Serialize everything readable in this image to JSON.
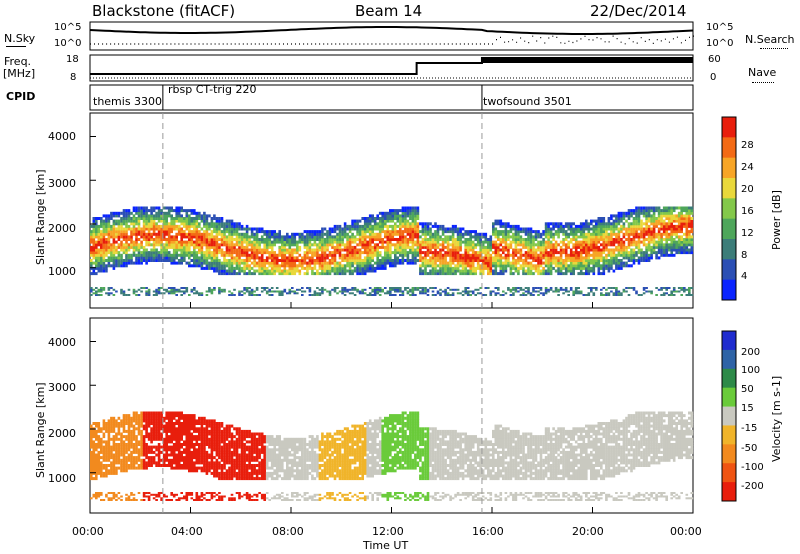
{
  "header": {
    "station": "Blackstone (fitACF)",
    "beam": "Beam 14",
    "date": "22/Dec/2014"
  },
  "top_panels": {
    "left_label_1": "N.Sky",
    "left_label_2a": "Freq.",
    "left_label_2b": "[MHz]",
    "left_label_3": "CPID",
    "right_label_1": "N.Search",
    "right_label_2": "Nave",
    "nsky_ticks": [
      "10^5",
      "10^0"
    ],
    "nsearch_ticks": [
      "10^5",
      "10^0"
    ],
    "freq_ticks": [
      "18",
      "8"
    ],
    "nave_ticks": [
      "60",
      "0"
    ],
    "cpid_labels": [
      "themis 3300",
      "rbsp CT-trig 220",
      "twofsound 3501"
    ]
  },
  "chart_data": [
    {
      "type": "heatmap",
      "ylabel": "Slant Range [km]",
      "y_ticks": [
        "1000",
        "2000",
        "3000",
        "4000"
      ],
      "colorbar_label": "Power [dB]",
      "colorbar_ticks": [
        "4",
        "8",
        "12",
        "16",
        "20",
        "24",
        "28"
      ],
      "colors": [
        "#0a24ff",
        "#2b4fb4",
        "#3c7d79",
        "#4ea65b",
        "#83c84a",
        "#e9d83b",
        "#f7a526",
        "#f36a15",
        "#e81e0c"
      ]
    },
    {
      "type": "heatmap",
      "ylabel": "Slant Range [km]",
      "y_ticks": [
        "1000",
        "2000",
        "3000",
        "4000"
      ],
      "colorbar_label": "Velocity [m s-1]",
      "colorbar_ticks": [
        "200",
        "100",
        "50",
        "15",
        "-15",
        "-50",
        "-100",
        "-200"
      ],
      "colors": [
        "#1f2ccf",
        "#2e63a6",
        "#2d8a48",
        "#6acb3a",
        "#c9c9c0",
        "#f0b42a",
        "#f28a1e",
        "#ef5412",
        "#e81e0c"
      ]
    }
  ],
  "x_ticks": [
    "00:00",
    "04:00",
    "08:00",
    "12:00",
    "16:00",
    "20:00",
    "00:00"
  ],
  "xlabel": "Time UT"
}
